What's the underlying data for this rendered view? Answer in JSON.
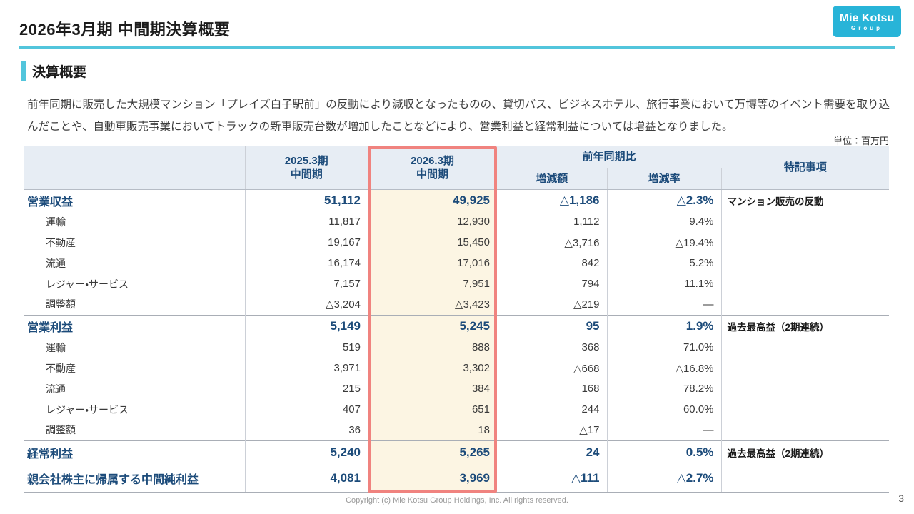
{
  "slide": {
    "title": "2026年3月期 中間期決算概要",
    "unit_label": "単位：百万円",
    "footer_text": "Copyright (c) Mie Kotsu Group Holdings, Inc. All rights reserved.",
    "page_number": "3"
  },
  "logo": {
    "name": "Mie Kotsu",
    "sub": "Group",
    "bg_color": "#28b4d8"
  },
  "section": {
    "title": "決算概要"
  },
  "summary": {
    "text": "前年同期に販売した大規模マンション「プレイズ白子駅前」の反動により減収となったものの、貸切バス、ビジネスホテル、旅行事業において万博等のイベント需要を取り込んだことや、自動車販売事業においてトラックの新車販売台数が増加したことなどにより、営業利益と経常利益については増益となりました。"
  },
  "colors": {
    "accent_cyan": "#52c5dc",
    "navy_text": "#1c4b7a",
    "highlight_border": "#f0837f",
    "highlight_bg": "#fcf5e3",
    "header_bg": "#e7edf4"
  },
  "table": {
    "header": {
      "period_prev_line1": "2025.3期",
      "period_prev_line2": "中間期",
      "period_curr_line1": "2026.3期",
      "period_curr_line2": "中間期",
      "yoy_label": "前年同期比",
      "diff_label": "増減額",
      "rate_label": "増減率",
      "notes_label": "特記事項"
    },
    "rows": [
      {
        "label": "営業収益",
        "major": true,
        "fy2025": "51,112",
        "fy2026": "49,925",
        "diff": "△1,186",
        "rate": "△2.3%",
        "note": "マンション販売の反動"
      },
      {
        "label": "運輸",
        "major": false,
        "fy2025": "11,817",
        "fy2026": "12,930",
        "diff": "1,112",
        "rate": "9.4%",
        "note": ""
      },
      {
        "label": "不動産",
        "major": false,
        "fy2025": "19,167",
        "fy2026": "15,450",
        "diff": "△3,716",
        "rate": "△19.4%",
        "note": ""
      },
      {
        "label": "流通",
        "major": false,
        "fy2025": "16,174",
        "fy2026": "17,016",
        "diff": "842",
        "rate": "5.2%",
        "note": ""
      },
      {
        "label": "レジャー・サービス",
        "major": false,
        "fy2025": "7,157",
        "fy2026": "7,951",
        "diff": "794",
        "rate": "11.1%",
        "note": ""
      },
      {
        "label": "調整額",
        "major": false,
        "fy2025": "△3,204",
        "fy2026": "△3,423",
        "diff": "△219",
        "rate": "—",
        "note": ""
      },
      {
        "label": "営業利益",
        "major": true,
        "fy2025": "5,149",
        "fy2026": "5,245",
        "diff": "95",
        "rate": "1.9%",
        "note": "過去最高益（2期連続）"
      },
      {
        "label": "運輸",
        "major": false,
        "fy2025": "519",
        "fy2026": "888",
        "diff": "368",
        "rate": "71.0%",
        "note": ""
      },
      {
        "label": "不動産",
        "major": false,
        "fy2025": "3,971",
        "fy2026": "3,302",
        "diff": "△668",
        "rate": "△16.8%",
        "note": ""
      },
      {
        "label": "流通",
        "major": false,
        "fy2025": "215",
        "fy2026": "384",
        "diff": "168",
        "rate": "78.2%",
        "note": ""
      },
      {
        "label": "レジャー・サービス",
        "major": false,
        "fy2025": "407",
        "fy2026": "651",
        "diff": "244",
        "rate": "60.0%",
        "note": ""
      },
      {
        "label": "調整額",
        "major": false,
        "fy2025": "36",
        "fy2026": "18",
        "diff": "△17",
        "rate": "—",
        "note": ""
      },
      {
        "label": "経常利益",
        "major": true,
        "fy2025": "5,240",
        "fy2026": "5,265",
        "diff": "24",
        "rate": "0.5%",
        "note": "過去最高益（2期連続）"
      },
      {
        "label": "親会社株主に帰属する中間純利益",
        "major": true,
        "fy2025": "4,081",
        "fy2026": "3,969",
        "diff": "△111",
        "rate": "△2.7%",
        "note": ""
      }
    ]
  }
}
